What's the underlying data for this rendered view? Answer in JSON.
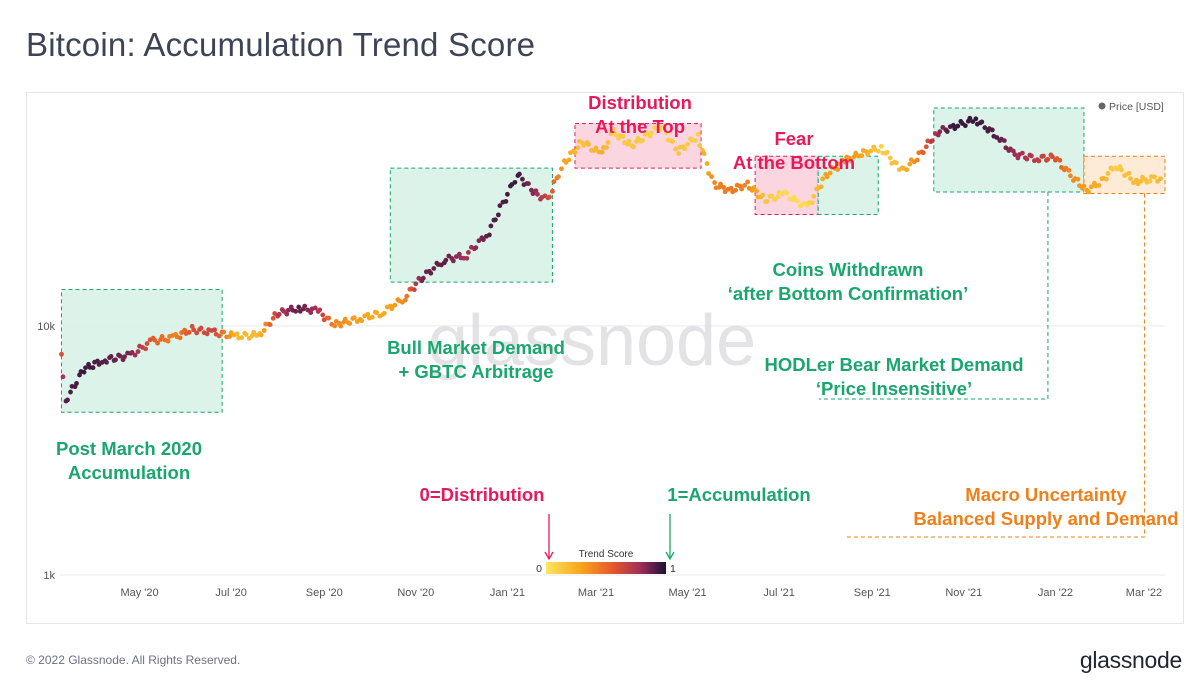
{
  "title": "Bitcoin: Accumulation Trend Score",
  "footer": {
    "copyright": "© 2022 Glassnode. All Rights Reserved.",
    "logo": "glassnode"
  },
  "watermark": "glassnode",
  "colors": {
    "accumulation": "#1aa66e",
    "distribution": "#e8195a",
    "macro": "#f07f1a",
    "score_low": "#fde560",
    "score_mid1": "#f7a21b",
    "score_mid2": "#e55a2b",
    "score_mid3": "#a12e59",
    "score_high": "#1c1336"
  },
  "annotations": {
    "post_march": [
      "Post March 2020",
      "Accumulation"
    ],
    "bull_market": [
      "Bull Market Demand",
      "+ GBTC Arbitrage"
    ],
    "distribution_top": [
      "Distribution",
      "At the Top"
    ],
    "fear_bottom": [
      "Fear",
      "At the Bottom"
    ],
    "coins_withdrawn": [
      "Coins Withdrawn",
      "‘after Bottom Confirmation’"
    ],
    "hodler": [
      "HODLer Bear Market Demand",
      "‘Price Insensitive’"
    ],
    "macro": [
      "Macro Uncertainty",
      "Balanced Supply and Demand"
    ],
    "zero_label": "0=Distribution",
    "one_label": "1=Accumulation"
  },
  "chart_data": {
    "type": "scatter",
    "title": "Bitcoin: Accumulation Trend Score",
    "legend": {
      "label": "Price [USD]",
      "position": "top-right"
    },
    "colorbar": {
      "label": "Trend Score",
      "min": 0,
      "max": 1,
      "min_label": "0",
      "max_label": "1"
    },
    "y_scale": "log",
    "ylim": [
      1000,
      80000
    ],
    "y_ticks": [
      {
        "value": 1000,
        "label": "1k"
      },
      {
        "value": 10000,
        "label": "10k"
      }
    ],
    "xlim": [
      "2020-03-09",
      "2022-03-15"
    ],
    "x_ticks": [
      {
        "date": "2020-05-01",
        "label": "May '20"
      },
      {
        "date": "2020-07-01",
        "label": "Jul '20"
      },
      {
        "date": "2020-09-01",
        "label": "Sep '20"
      },
      {
        "date": "2020-11-01",
        "label": "Nov '20"
      },
      {
        "date": "2021-01-01",
        "label": "Jan '21"
      },
      {
        "date": "2021-03-01",
        "label": "Mar '21"
      },
      {
        "date": "2021-05-01",
        "label": "May '21"
      },
      {
        "date": "2021-07-01",
        "label": "Jul '21"
      },
      {
        "date": "2021-09-01",
        "label": "Sep '21"
      },
      {
        "date": "2021-11-01",
        "label": "Nov '21"
      },
      {
        "date": "2022-01-01",
        "label": "Jan '22"
      },
      {
        "date": "2022-03-01",
        "label": "Mar '22"
      }
    ],
    "series": [
      {
        "name": "Price [USD]",
        "points": [
          {
            "date": "2020-03-10",
            "price": 7900,
            "score": 0.6
          },
          {
            "date": "2020-03-13",
            "price": 5000,
            "score": 0.9
          },
          {
            "date": "2020-03-25",
            "price": 6700,
            "score": 0.95
          },
          {
            "date": "2020-04-08",
            "price": 7300,
            "score": 0.9
          },
          {
            "date": "2020-04-25",
            "price": 7600,
            "score": 0.85
          },
          {
            "date": "2020-05-10",
            "price": 8700,
            "score": 0.55
          },
          {
            "date": "2020-05-25",
            "price": 9000,
            "score": 0.4
          },
          {
            "date": "2020-06-05",
            "price": 9700,
            "score": 0.6
          },
          {
            "date": "2020-06-20",
            "price": 9400,
            "score": 0.65
          },
          {
            "date": "2020-07-05",
            "price": 9100,
            "score": 0.2
          },
          {
            "date": "2020-07-20",
            "price": 9200,
            "score": 0.2
          },
          {
            "date": "2020-08-01",
            "price": 11200,
            "score": 0.7
          },
          {
            "date": "2020-08-15",
            "price": 11800,
            "score": 0.9
          },
          {
            "date": "2020-08-28",
            "price": 11500,
            "score": 0.75
          },
          {
            "date": "2020-09-08",
            "price": 10100,
            "score": 0.4
          },
          {
            "date": "2020-09-25",
            "price": 10700,
            "score": 0.3
          },
          {
            "date": "2020-10-10",
            "price": 11300,
            "score": 0.25
          },
          {
            "date": "2020-10-25",
            "price": 13000,
            "score": 0.4
          },
          {
            "date": "2020-11-05",
            "price": 15500,
            "score": 0.85
          },
          {
            "date": "2020-11-20",
            "price": 18400,
            "score": 0.9
          },
          {
            "date": "2020-12-05",
            "price": 19200,
            "score": 0.75
          },
          {
            "date": "2020-12-20",
            "price": 23800,
            "score": 0.9
          },
          {
            "date": "2021-01-08",
            "price": 40500,
            "score": 0.95
          },
          {
            "date": "2021-01-20",
            "price": 34000,
            "score": 0.8
          },
          {
            "date": "2021-01-28",
            "price": 32000,
            "score": 0.65
          },
          {
            "date": "2021-02-08",
            "price": 45000,
            "score": 0.3
          },
          {
            "date": "2021-02-20",
            "price": 55000,
            "score": 0.15
          },
          {
            "date": "2021-03-05",
            "price": 49000,
            "score": 0.25
          },
          {
            "date": "2021-03-13",
            "price": 60000,
            "score": 0.1
          },
          {
            "date": "2021-03-25",
            "price": 53000,
            "score": 0.15
          },
          {
            "date": "2021-04-14",
            "price": 63500,
            "score": 0.05
          },
          {
            "date": "2021-04-25",
            "price": 50000,
            "score": 0.15
          },
          {
            "date": "2021-05-08",
            "price": 58000,
            "score": 0.1
          },
          {
            "date": "2021-05-19",
            "price": 37000,
            "score": 0.4
          },
          {
            "date": "2021-05-30",
            "price": 35000,
            "score": 0.45
          },
          {
            "date": "2021-06-10",
            "price": 37000,
            "score": 0.4
          },
          {
            "date": "2021-06-22",
            "price": 32000,
            "score": 0.15
          },
          {
            "date": "2021-07-05",
            "price": 34000,
            "score": 0.05
          },
          {
            "date": "2021-07-20",
            "price": 29800,
            "score": 0.05
          },
          {
            "date": "2021-08-01",
            "price": 40000,
            "score": 0.3
          },
          {
            "date": "2021-08-14",
            "price": 46000,
            "score": 0.35
          },
          {
            "date": "2021-08-25",
            "price": 49000,
            "score": 0.3
          },
          {
            "date": "2021-09-07",
            "price": 52000,
            "score": 0.1
          },
          {
            "date": "2021-09-21",
            "price": 42000,
            "score": 0.2
          },
          {
            "date": "2021-10-01",
            "price": 47000,
            "score": 0.4
          },
          {
            "date": "2021-10-15",
            "price": 60000,
            "score": 0.8
          },
          {
            "date": "2021-10-25",
            "price": 63000,
            "score": 0.95
          },
          {
            "date": "2021-11-09",
            "price": 67500,
            "score": 0.95
          },
          {
            "date": "2021-11-25",
            "price": 57000,
            "score": 0.9
          },
          {
            "date": "2021-12-04",
            "price": 49000,
            "score": 0.8
          },
          {
            "date": "2021-12-20",
            "price": 47000,
            "score": 0.7
          },
          {
            "date": "2022-01-01",
            "price": 47500,
            "score": 0.6
          },
          {
            "date": "2022-01-10",
            "price": 41000,
            "score": 0.4
          },
          {
            "date": "2022-01-22",
            "price": 35000,
            "score": 0.3
          },
          {
            "date": "2022-02-01",
            "price": 38000,
            "score": 0.25
          },
          {
            "date": "2022-02-10",
            "price": 44000,
            "score": 0.1
          },
          {
            "date": "2022-02-24",
            "price": 38000,
            "score": 0.2
          },
          {
            "date": "2022-03-05",
            "price": 39000,
            "score": 0.15
          },
          {
            "date": "2022-03-12",
            "price": 39000,
            "score": 0.2
          }
        ]
      }
    ],
    "regions": [
      {
        "label": "Post March 2020 Accumulation",
        "kind": "accumulation",
        "start": "2020-03-10",
        "end": "2020-06-25",
        "price_low": 4500,
        "price_high": 14000
      },
      {
        "label": "Bull Market Demand + GBTC Arbitrage",
        "kind": "accumulation",
        "start": "2020-10-15",
        "end": "2021-01-31",
        "price_low": 15000,
        "price_high": 43000
      },
      {
        "label": "Distribution At the Top",
        "kind": "distribution",
        "start": "2021-02-15",
        "end": "2021-05-10",
        "price_low": 43000,
        "price_high": 65000
      },
      {
        "label": "Fear At the Bottom",
        "kind": "distribution",
        "start": "2021-06-15",
        "end": "2021-07-27",
        "price_low": 28000,
        "price_high": 48000
      },
      {
        "label": "Coins Withdrawn ‘after Bottom Confirmation’",
        "kind": "accumulation",
        "start": "2021-07-27",
        "end": "2021-09-05",
        "price_low": 28000,
        "price_high": 48000
      },
      {
        "label": "HODLer Bear Market Demand ‘Price Insensitive’",
        "kind": "accumulation",
        "start": "2021-10-12",
        "end": "2022-01-20",
        "price_low": 34500,
        "price_high": 75000
      },
      {
        "label": "Macro Uncertainty Balanced Supply and Demand",
        "kind": "macro",
        "start": "2022-01-20",
        "end": "2022-03-15",
        "price_low": 34000,
        "price_high": 48000
      }
    ]
  }
}
